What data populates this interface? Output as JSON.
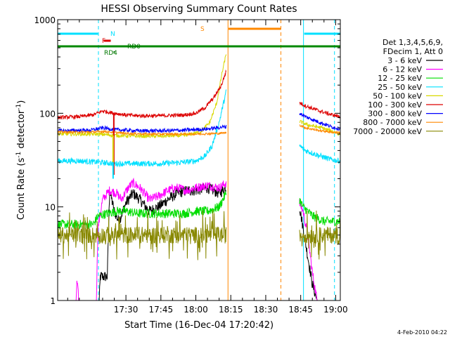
{
  "chart_data": {
    "type": "line",
    "title": "HESSI Observing Summary Count Rates",
    "xlabel": "Start Time (16-Dec-04 17:20:42)",
    "ylabel_main": "Count Rate (s",
    "ylabel_sup1": "-1",
    "ylabel_mid": " detector",
    "ylabel_sup2": "-1",
    "ylabel_end": ")",
    "yscale": "log",
    "ylim": [
      1,
      1000
    ],
    "xlim_min": [
      1020.7,
      1142
    ],
    "x_ticks": [
      {
        "min": 1050,
        "label": "17:30"
      },
      {
        "min": 1065,
        "label": "17:45"
      },
      {
        "min": 1080,
        "label": "18:00"
      },
      {
        "min": 1095,
        "label": "18:15"
      },
      {
        "min": 1110,
        "label": "18:30"
      },
      {
        "min": 1125,
        "label": "18:45"
      },
      {
        "min": 1140,
        "label": "19:00"
      }
    ],
    "y_ticks": [
      {
        "v": 1,
        "label": "1"
      },
      {
        "v": 10,
        "label": "10"
      },
      {
        "v": 100,
        "label": "100"
      },
      {
        "v": 1000,
        "label": "1000"
      }
    ],
    "legend": {
      "header1": "Det 1,3,4,5,6,9,",
      "header2": "FDecim 1, Att 0",
      "entries": [
        {
          "label": "3 - 6 keV",
          "color": "#000000"
        },
        {
          "label": "6 - 12 keV",
          "color": "#ff00ff"
        },
        {
          "label": "12 - 25 keV",
          "color": "#00dd00"
        },
        {
          "label": "25 - 50 keV",
          "color": "#00e0ff"
        },
        {
          "label": "50 - 100 keV",
          "color": "#d8d800"
        },
        {
          "label": "100 - 300 keV",
          "color": "#dd0000"
        },
        {
          "label": "300 - 800 keV",
          "color": "#0000ff"
        },
        {
          "label": "800 - 7000 keV",
          "color": "#ff8800"
        },
        {
          "label": "7000 - 20000 keV",
          "color": "#888800"
        }
      ]
    },
    "flags": [
      {
        "label": "N",
        "color": "#00e0ff"
      },
      {
        "label": "F",
        "color": "#dd0000"
      },
      {
        "label": "RD0",
        "color": "#007700"
      },
      {
        "label": "RD4",
        "color": "#007700"
      },
      {
        "label": "S",
        "color": "#ff8800"
      }
    ],
    "segments": [
      {
        "start": 1020.7,
        "end": 1093.5
      },
      {
        "start": 1124.5,
        "end": 1142
      }
    ],
    "series": [
      {
        "color": "#000000",
        "seg1": [
          [
            1020.7,
            0.5
          ],
          [
            1038,
            0.5
          ],
          [
            1039,
            1.8
          ],
          [
            1042,
            1.8
          ],
          [
            1043,
            15
          ],
          [
            1045,
            9
          ],
          [
            1047,
            7
          ],
          [
            1050,
            11
          ],
          [
            1053,
            14
          ],
          [
            1056,
            12
          ],
          [
            1060,
            9
          ],
          [
            1064,
            10
          ],
          [
            1068,
            12
          ],
          [
            1072,
            14
          ],
          [
            1076,
            15
          ],
          [
            1080,
            15
          ],
          [
            1085,
            16
          ],
          [
            1090,
            14
          ],
          [
            1093,
            16
          ]
        ],
        "seg2": [
          [
            1124.5,
            10
          ],
          [
            1126,
            6
          ],
          [
            1128,
            3
          ],
          [
            1130,
            1.5
          ],
          [
            1132,
            1.0
          ],
          [
            1135,
            0.5
          ],
          [
            1142,
            0.5
          ]
        ]
      },
      {
        "color": "#ff00ff",
        "seg1": [
          [
            1020.7,
            0.5
          ],
          [
            1028,
            0.5
          ],
          [
            1029,
            1.6
          ],
          [
            1031,
            0.5
          ],
          [
            1037,
            0.5
          ],
          [
            1038,
            6
          ],
          [
            1040,
            12
          ],
          [
            1043,
            15
          ],
          [
            1046,
            14
          ],
          [
            1048,
            12
          ],
          [
            1051,
            16
          ],
          [
            1053,
            18
          ],
          [
            1056,
            16
          ],
          [
            1060,
            12
          ],
          [
            1064,
            13
          ],
          [
            1068,
            15
          ],
          [
            1072,
            16
          ],
          [
            1076,
            15
          ],
          [
            1080,
            16
          ],
          [
            1085,
            17
          ],
          [
            1090,
            16
          ],
          [
            1093,
            18
          ]
        ],
        "seg2": [
          [
            1124.5,
            11
          ],
          [
            1126,
            9
          ],
          [
            1128,
            5
          ],
          [
            1130,
            2
          ],
          [
            1132,
            1
          ],
          [
            1135,
            0.5
          ],
          [
            1142,
            0.5
          ]
        ]
      },
      {
        "color": "#00dd00",
        "seg1": [
          [
            1020.7,
            6.5
          ],
          [
            1030,
            6.5
          ],
          [
            1036,
            6.5
          ],
          [
            1038,
            8
          ],
          [
            1042,
            8.5
          ],
          [
            1046,
            9
          ],
          [
            1050,
            9
          ],
          [
            1055,
            8.5
          ],
          [
            1060,
            8.5
          ],
          [
            1065,
            8.5
          ],
          [
            1070,
            8.5
          ],
          [
            1075,
            8.5
          ],
          [
            1080,
            9
          ],
          [
            1085,
            9
          ],
          [
            1090,
            10
          ],
          [
            1093,
            14
          ]
        ],
        "seg2": [
          [
            1124.5,
            12
          ],
          [
            1126,
            10
          ],
          [
            1128,
            9
          ],
          [
            1130,
            8
          ],
          [
            1135,
            7
          ],
          [
            1142,
            7
          ]
        ]
      },
      {
        "color": "#00e0ff",
        "seg1": [
          [
            1020.7,
            31
          ],
          [
            1030,
            31
          ],
          [
            1038,
            30
          ],
          [
            1045,
            29
          ],
          [
            1055,
            29
          ],
          [
            1065,
            29
          ],
          [
            1075,
            30
          ],
          [
            1080,
            31
          ],
          [
            1084,
            35
          ],
          [
            1087,
            45
          ],
          [
            1090,
            80
          ],
          [
            1093,
            170
          ]
        ],
        "seg2": [
          [
            1124.5,
            45
          ],
          [
            1127,
            40
          ],
          [
            1132,
            36
          ],
          [
            1138,
            32
          ],
          [
            1142,
            31
          ]
        ]
      },
      {
        "color": "#d8d800",
        "seg1": [
          [
            1020.7,
            60
          ],
          [
            1038,
            60
          ],
          [
            1045,
            58
          ],
          [
            1055,
            57
          ],
          [
            1065,
            57
          ],
          [
            1075,
            58
          ],
          [
            1082,
            63
          ],
          [
            1086,
            80
          ],
          [
            1089,
            130
          ],
          [
            1091,
            250
          ],
          [
            1093,
            430
          ]
        ],
        "seg2": [
          [
            1124.5,
            82
          ],
          [
            1128,
            75
          ],
          [
            1134,
            70
          ],
          [
            1142,
            60
          ]
        ]
      },
      {
        "color": "#dd0000",
        "seg1": [
          [
            1020.7,
            90
          ],
          [
            1030,
            92
          ],
          [
            1036,
            96
          ],
          [
            1040,
            106
          ],
          [
            1045,
            100
          ],
          [
            1050,
            96
          ],
          [
            1055,
            94
          ],
          [
            1065,
            94
          ],
          [
            1075,
            96
          ],
          [
            1080,
            100
          ],
          [
            1084,
            115
          ],
          [
            1088,
            150
          ],
          [
            1091,
            200
          ],
          [
            1093,
            280
          ]
        ],
        "seg2": [
          [
            1124.5,
            130
          ],
          [
            1127,
            120
          ],
          [
            1132,
            108
          ],
          [
            1138,
            97
          ],
          [
            1142,
            92
          ]
        ]
      },
      {
        "color": "#0000ff",
        "seg1": [
          [
            1020.7,
            65
          ],
          [
            1035,
            66
          ],
          [
            1040,
            70
          ],
          [
            1045,
            67
          ],
          [
            1055,
            65
          ],
          [
            1065,
            65
          ],
          [
            1075,
            66
          ],
          [
            1085,
            68
          ],
          [
            1093,
            72
          ]
        ],
        "seg2": [
          [
            1124.5,
            100
          ],
          [
            1127,
            92
          ],
          [
            1132,
            82
          ],
          [
            1138,
            72
          ],
          [
            1142,
            68
          ]
        ]
      },
      {
        "color": "#ff8800",
        "seg1": [
          [
            1020.7,
            63
          ],
          [
            1035,
            63
          ],
          [
            1040,
            64
          ],
          [
            1050,
            61
          ],
          [
            1060,
            60
          ],
          [
            1070,
            60
          ],
          [
            1080,
            60
          ],
          [
            1090,
            61
          ],
          [
            1093,
            62
          ]
        ],
        "seg2": [
          [
            1124.5,
            75
          ],
          [
            1127,
            70
          ],
          [
            1132,
            66
          ],
          [
            1138,
            63
          ],
          [
            1142,
            62
          ]
        ]
      },
      {
        "color": "#888800",
        "seg1": [
          [
            1020.7,
            5
          ],
          [
            1030,
            5
          ],
          [
            1040,
            5
          ],
          [
            1050,
            5
          ],
          [
            1060,
            5
          ],
          [
            1070,
            5
          ],
          [
            1080,
            5
          ],
          [
            1090,
            5
          ],
          [
            1093,
            5
          ]
        ],
        "seg2": [
          [
            1124.5,
            5
          ],
          [
            1130,
            5
          ],
          [
            1142,
            5
          ]
        ]
      }
    ],
    "spikes": [
      {
        "color": "#dd0000",
        "min": 1044.8,
        "from": 100,
        "to": 22
      },
      {
        "color": "#00e0ff",
        "min": 1044.5,
        "from": 30,
        "to": 20
      },
      {
        "color": "#d8d800",
        "min": 1044.5,
        "from": 58,
        "to": 30
      }
    ]
  },
  "footer": {
    "date": "4-Feb-2010 04:22"
  }
}
